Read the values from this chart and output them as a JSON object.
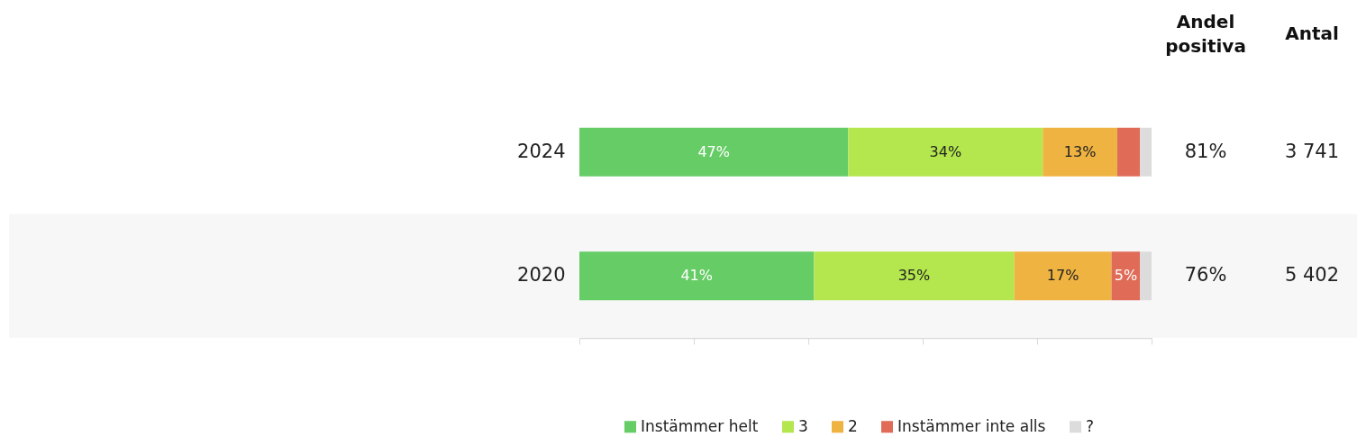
{
  "chart_data": {
    "type": "bar",
    "orientation": "horizontal",
    "stacked": true,
    "categories": [
      "2024",
      "2020"
    ],
    "series": [
      {
        "name": "Instämmer helt",
        "color": "#66cc66",
        "values": [
          47,
          41
        ],
        "value_labels": [
          "47%",
          "41%"
        ]
      },
      {
        "name": "3",
        "color": "#b4e64d",
        "values": [
          34,
          35
        ],
        "value_labels": [
          "34%",
          "35%"
        ]
      },
      {
        "name": "2",
        "color": "#efb342",
        "values": [
          13,
          17
        ],
        "value_labels": [
          "13%",
          "17%"
        ]
      },
      {
        "name": "Instämmer inte alls",
        "color": "#e06c58",
        "values": [
          4,
          5
        ],
        "value_labels": [
          null,
          "5%"
        ]
      },
      {
        "name": "?",
        "color": "#dcdcdc",
        "values": [
          2,
          2
        ]
      }
    ],
    "xlim": [
      0,
      100
    ],
    "xticks": [
      {
        "value": 0,
        "label": null
      },
      {
        "value": 20,
        "label": null
      },
      {
        "value": 40,
        "label": null
      },
      {
        "value": 60,
        "label": null
      },
      {
        "value": 80,
        "label": null
      },
      {
        "value": 100,
        "label": null
      }
    ],
    "tick_labels": "y",
    "legend": "bottom",
    "bands": [
      {
        "axis": "y",
        "from": "2020",
        "to": "2020",
        "color": "#f7f7f7"
      }
    ],
    "annotations": [
      "Andel positiva",
      "Antal",
      "81%",
      "3 741",
      "76%",
      "5 402"
    ]
  }
}
